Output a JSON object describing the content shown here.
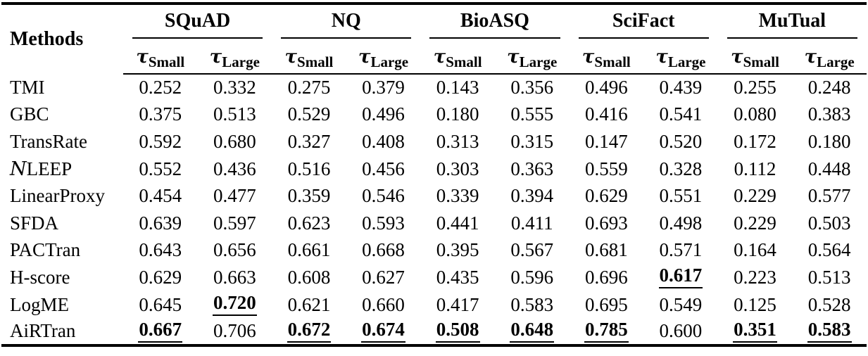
{
  "table": {
    "methods_header": "Methods",
    "datasets": [
      "SQuAD",
      "NQ",
      "BioASQ",
      "SciFact",
      "MuTual"
    ],
    "metric_symbol": "τ",
    "metric_subscripts": [
      "Small",
      "Large"
    ],
    "rows": [
      {
        "method": "TMI",
        "values": [
          "0.252",
          "0.332",
          "0.275",
          "0.379",
          "0.143",
          "0.356",
          "0.496",
          "0.439",
          "0.255",
          "0.248"
        ],
        "bold_underline": [
          0,
          0,
          0,
          0,
          0,
          0,
          0,
          0,
          0,
          0
        ]
      },
      {
        "method": "GBC",
        "values": [
          "0.375",
          "0.513",
          "0.529",
          "0.496",
          "0.180",
          "0.555",
          "0.416",
          "0.541",
          "0.080",
          "0.383"
        ],
        "bold_underline": [
          0,
          0,
          0,
          0,
          0,
          0,
          0,
          0,
          0,
          0
        ]
      },
      {
        "method": "TransRate",
        "values": [
          "0.592",
          "0.680",
          "0.327",
          "0.408",
          "0.313",
          "0.315",
          "0.147",
          "0.520",
          "0.172",
          "0.180"
        ],
        "bold_underline": [
          0,
          0,
          0,
          0,
          0,
          0,
          0,
          0,
          0,
          0
        ]
      },
      {
        "method": [
          {
            "t": "N",
            "s": "script"
          },
          {
            "t": "LEEP",
            "s": "n"
          }
        ],
        "values": [
          "0.552",
          "0.436",
          "0.516",
          "0.456",
          "0.303",
          "0.363",
          "0.559",
          "0.328",
          "0.112",
          "0.448"
        ],
        "bold_underline": [
          0,
          0,
          0,
          0,
          0,
          0,
          0,
          0,
          0,
          0
        ]
      },
      {
        "method": "LinearProxy",
        "values": [
          "0.454",
          "0.477",
          "0.359",
          "0.546",
          "0.339",
          "0.394",
          "0.629",
          "0.551",
          "0.229",
          "0.577"
        ],
        "bold_underline": [
          0,
          0,
          0,
          0,
          0,
          0,
          0,
          0,
          0,
          0
        ]
      },
      {
        "method": "SFDA",
        "values": [
          "0.639",
          "0.597",
          "0.623",
          "0.593",
          "0.441",
          "0.411",
          "0.693",
          "0.498",
          "0.229",
          "0.503"
        ],
        "bold_underline": [
          0,
          0,
          0,
          0,
          0,
          0,
          0,
          0,
          0,
          0
        ]
      },
      {
        "method": "PACTran",
        "values": [
          "0.643",
          "0.656",
          "0.661",
          "0.668",
          "0.395",
          "0.567",
          "0.681",
          "0.571",
          "0.164",
          "0.564"
        ],
        "bold_underline": [
          0,
          0,
          0,
          0,
          0,
          0,
          0,
          0,
          0,
          0
        ]
      },
      {
        "method": "H-score",
        "values": [
          "0.629",
          "0.663",
          "0.608",
          "0.627",
          "0.435",
          "0.596",
          "0.696",
          "0.617",
          "0.223",
          "0.513"
        ],
        "bold_underline": [
          0,
          0,
          0,
          0,
          0,
          0,
          0,
          1,
          0,
          0
        ]
      },
      {
        "method": "LogME",
        "values": [
          "0.645",
          "0.720",
          "0.621",
          "0.660",
          "0.417",
          "0.583",
          "0.695",
          "0.549",
          "0.125",
          "0.528"
        ],
        "bold_underline": [
          0,
          1,
          0,
          0,
          0,
          0,
          0,
          0,
          0,
          0
        ]
      },
      {
        "method": "AiRTran",
        "values": [
          "0.667",
          "0.706",
          "0.672",
          "0.674",
          "0.508",
          "0.648",
          "0.785",
          "0.600",
          "0.351",
          "0.583"
        ],
        "bold_underline": [
          1,
          0,
          1,
          1,
          1,
          1,
          1,
          0,
          1,
          1
        ]
      }
    ],
    "colors": {
      "text": "#000000",
      "background": "#ffffff",
      "rule": "#000000"
    }
  }
}
